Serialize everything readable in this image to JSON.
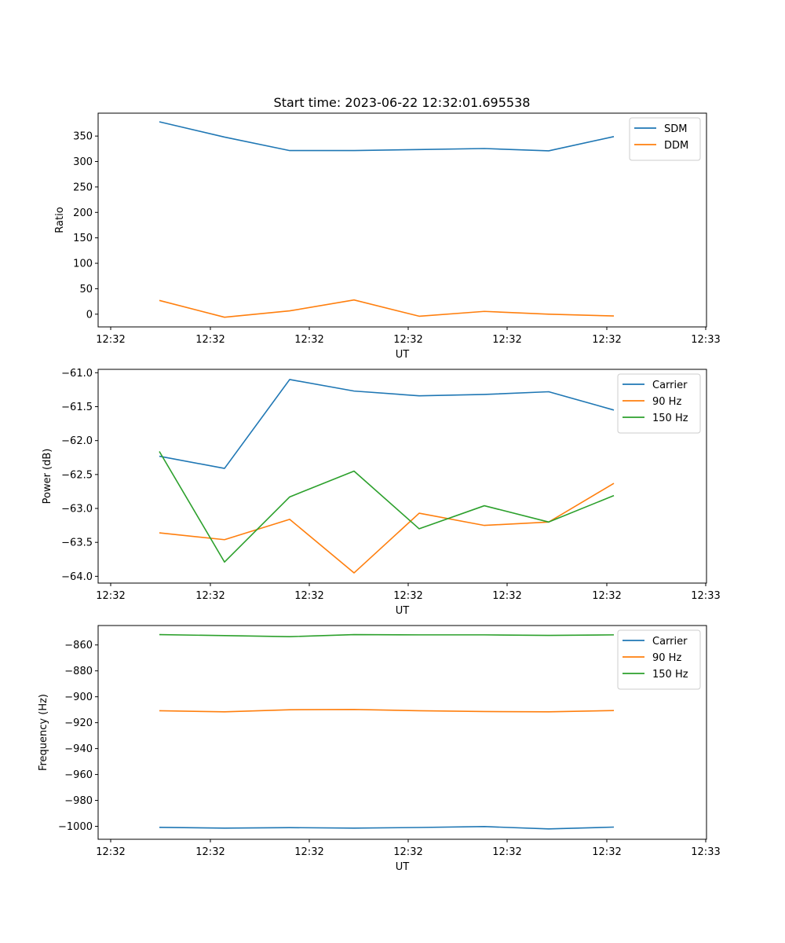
{
  "title": "Start time: 2023-06-22 12:32:01.695538",
  "chart_data": [
    {
      "type": "line",
      "title": "Start time: 2023-06-22 12:32:01.695538",
      "xlabel": "UT",
      "ylabel": "Ratio",
      "ylim": [
        -25,
        395
      ],
      "yticks": [
        0,
        50,
        100,
        150,
        200,
        250,
        300,
        350
      ],
      "xticklabels": [
        "12:32",
        "12:32",
        "12:32",
        "12:32",
        "12:32",
        "12:32",
        "12:33"
      ],
      "legend_position": "upper right",
      "series": [
        {
          "name": "SDM",
          "color": "#1f77b4",
          "values": [
            378,
            348,
            321.5,
            321.5,
            323.5,
            325.5,
            321,
            349
          ]
        },
        {
          "name": "DDM",
          "color": "#ff7f0e",
          "values": [
            27,
            -6,
            6.5,
            28,
            -4,
            5.5,
            0,
            -3.5
          ]
        }
      ]
    },
    {
      "type": "line",
      "xlabel": "UT",
      "ylabel": "Power (dB)",
      "ylim": [
        -64.1,
        -60.95
      ],
      "yticks": [
        -64.0,
        -63.5,
        -63.0,
        -62.5,
        -62.0,
        -61.5,
        -61.0
      ],
      "yticklabels": [
        "−64.0",
        "−63.5",
        "−63.0",
        "−62.5",
        "−62.0",
        "−61.5",
        "−61.0"
      ],
      "xticklabels": [
        "12:32",
        "12:32",
        "12:32",
        "12:32",
        "12:32",
        "12:32",
        "12:33"
      ],
      "legend_position": "upper right",
      "series": [
        {
          "name": "Carrier",
          "color": "#1f77b4",
          "values": [
            -62.23,
            -62.41,
            -61.1,
            -61.27,
            -61.34,
            -61.32,
            -61.28,
            -61.55
          ]
        },
        {
          "name": "90 Hz",
          "color": "#ff7f0e",
          "values": [
            -63.36,
            -63.46,
            -63.16,
            -63.95,
            -63.07,
            -63.25,
            -63.2,
            -62.63
          ]
        },
        {
          "name": "150 Hz",
          "color": "#2ca02c",
          "values": [
            -62.16,
            -63.79,
            -62.83,
            -62.45,
            -63.3,
            -62.96,
            -63.2,
            -62.81
          ]
        }
      ]
    },
    {
      "type": "line",
      "xlabel": "UT",
      "ylabel": "Frequency (Hz)",
      "ylim": [
        -1010,
        -845
      ],
      "yticks": [
        -1000,
        -980,
        -960,
        -940,
        -920,
        -900,
        -880,
        -860
      ],
      "yticklabels": [
        "−1000",
        "−980",
        "−960",
        "−940",
        "−920",
        "−900",
        "−880",
        "−860"
      ],
      "xticklabels": [
        "12:32",
        "12:32",
        "12:32",
        "12:32",
        "12:32",
        "12:32",
        "12:33"
      ],
      "legend_position": "upper right",
      "series": [
        {
          "name": "Carrier",
          "color": "#1f77b4",
          "values": [
            -1000.8,
            -1001.4,
            -1001,
            -1001.4,
            -1000.9,
            -1000.2,
            -1002,
            -1000.6
          ]
        },
        {
          "name": "90 Hz",
          "color": "#ff7f0e",
          "values": [
            -910.8,
            -911.6,
            -910,
            -909.8,
            -910.8,
            -911.4,
            -911.6,
            -910.6
          ]
        },
        {
          "name": "150 Hz",
          "color": "#2ca02c",
          "values": [
            -852,
            -852.8,
            -853.6,
            -852,
            -852.2,
            -852.2,
            -852.6,
            -852.2
          ]
        }
      ]
    }
  ]
}
